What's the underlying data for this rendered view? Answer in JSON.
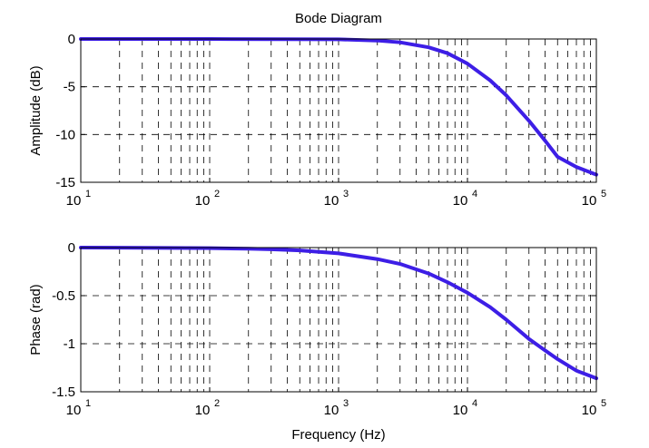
{
  "chart_data": [
    {
      "type": "line",
      "title": "Bode Diagram",
      "xlabel": "",
      "ylabel": "Amplitude (dB)",
      "xscale": "log",
      "xlim": [
        10,
        100000
      ],
      "ylim": [
        -15,
        0
      ],
      "xticks": [
        {
          "base": "10",
          "exp": "1"
        },
        {
          "base": "10",
          "exp": "2"
        },
        {
          "base": "10",
          "exp": "3"
        },
        {
          "base": "10",
          "exp": "4"
        },
        {
          "base": "10",
          "exp": "5"
        }
      ],
      "yticks": [
        "0",
        "-5",
        "-10",
        "-15"
      ],
      "grid": true,
      "line_color": "#3d1ee6",
      "series": [
        {
          "x": [
            10,
            100,
            1000,
            2000,
            3000,
            5000,
            7000,
            10000,
            15000,
            20000,
            30000,
            40000,
            50000,
            70000,
            100000
          ],
          "values": [
            0,
            0,
            -0.04,
            -0.16,
            -0.35,
            -0.87,
            -1.49,
            -2.58,
            -4.33,
            -5.9,
            -8.56,
            -10.64,
            -12.33,
            -13.4,
            -14.2
          ]
        }
      ]
    },
    {
      "type": "line",
      "title": "",
      "xlabel": "Frequency (Hz)",
      "ylabel": "Phase (rad)",
      "xscale": "log",
      "xlim": [
        10,
        100000
      ],
      "ylim": [
        -1.5,
        0
      ],
      "xticks": [
        {
          "base": "10",
          "exp": "1"
        },
        {
          "base": "10",
          "exp": "2"
        },
        {
          "base": "10",
          "exp": "3"
        },
        {
          "base": "10",
          "exp": "4"
        },
        {
          "base": "10",
          "exp": "5"
        }
      ],
      "yticks": [
        "0",
        "-0.5",
        "-1",
        "-1.5"
      ],
      "grid": true,
      "line_color": "#3d1ee6",
      "series": [
        {
          "x": [
            10,
            30,
            100,
            200,
            300,
            500,
            1000,
            2000,
            3000,
            5000,
            7000,
            10000,
            15000,
            20000,
            30000,
            40000,
            50000,
            70000,
            100000
          ],
          "values": [
            0,
            -0.002,
            -0.006,
            -0.012,
            -0.018,
            -0.03,
            -0.06,
            -0.12,
            -0.17,
            -0.27,
            -0.36,
            -0.47,
            -0.62,
            -0.75,
            -0.95,
            -1.07,
            -1.16,
            -1.28,
            -1.36
          ]
        }
      ]
    }
  ]
}
